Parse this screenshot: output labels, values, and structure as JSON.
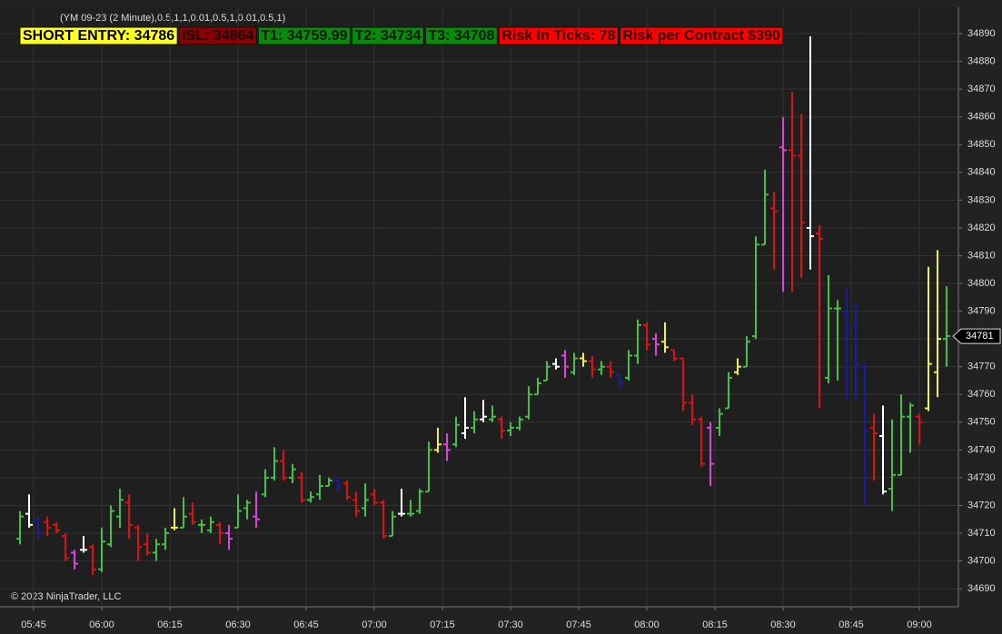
{
  "chart_data": {
    "type": "ohlc",
    "title": "(YM 09-23 (2 Minute),0.5,1,1,0.01,0.5,1,0.01,0.5,1)",
    "copyright": "© 2023 NinjaTrader, LLC",
    "annotations": [
      {
        "text": "SHORT ENTRY: 34786",
        "background": "#ffff22",
        "color": "#000000"
      },
      {
        "text": "ISL: 34864",
        "background": "#8b0000",
        "color": "#1a0000"
      },
      {
        "text": "T1: 34759.99",
        "background": "#0a8a0a",
        "color": "#001a00"
      },
      {
        "text": "T2: 34734",
        "background": "#0a8a0a",
        "color": "#001a00"
      },
      {
        "text": "T3: 34708",
        "background": "#0a8a0a",
        "color": "#001a00"
      },
      {
        "text": "Risk In Ticks: 78",
        "background": "#ff0000",
        "color": "#2a0000"
      },
      {
        "text": "Risk per Contract $390",
        "background": "#ff0000",
        "color": "#2a0000"
      }
    ],
    "x": [
      342,
      344,
      346,
      348,
      350,
      352,
      354,
      356,
      358,
      360,
      362,
      364,
      366,
      368,
      370,
      372,
      374,
      376,
      378,
      380,
      382,
      384,
      386,
      388,
      390,
      392,
      394,
      396,
      398,
      400,
      402,
      404,
      406,
      408,
      410,
      412,
      414,
      416,
      418,
      420,
      422,
      424,
      426,
      428,
      430,
      432,
      434,
      436,
      438,
      440,
      442,
      444,
      446,
      448,
      450,
      452,
      454,
      456,
      458,
      460,
      462,
      464,
      466,
      468,
      470,
      472,
      474,
      476,
      478,
      480,
      482,
      484,
      486,
      488,
      490,
      492,
      494,
      496,
      498,
      500,
      502,
      504,
      506,
      508,
      510,
      512,
      514,
      516,
      518,
      520,
      522,
      524,
      526,
      528,
      530,
      532,
      534,
      536,
      538,
      540,
      542,
      544,
      546
    ],
    "open": [
      34708,
      34717,
      34715,
      34714,
      34713,
      34709,
      34703,
      34704,
      34705,
      34697,
      34706,
      34716,
      34721,
      34712,
      34706,
      34703,
      34706,
      34712,
      34712,
      34717,
      34713,
      34711,
      34713,
      34710,
      34712,
      34719,
      34716,
      34724,
      34730,
      34736,
      34730,
      34730,
      34722,
      34724,
      34727,
      34729,
      34728,
      34722,
      34719,
      34724,
      34721,
      34709,
      34717,
      34717,
      34718,
      34725,
      34740,
      34742,
      34742,
      34746,
      34748,
      34751,
      34751,
      34751,
      34747,
      34748,
      34752,
      34760,
      34765,
      34771,
      34774,
      34768,
      34773,
      34772,
      34769,
      34770,
      34767,
      34766,
      34774,
      34785,
      34780,
      34779,
      34776,
      34773,
      34757,
      34751,
      34748,
      34748,
      34755,
      34768,
      34770,
      34781,
      34814,
      34827,
      34849,
      34848,
      34846,
      34820,
      34818,
      34766,
      34791,
      34789,
      34785,
      34770,
      34748,
      34745,
      34726,
      34731,
      34752,
      34752,
      34755,
      34768,
      34780
    ],
    "high": [
      34718,
      34724,
      34716,
      34716,
      34714,
      34710,
      34704,
      34709,
      34706,
      34712,
      34720,
      34726,
      34724,
      34713,
      34710,
      34708,
      34712,
      34719,
      34723,
      34721,
      34715,
      34716,
      34714,
      34713,
      34724,
      34722,
      34725,
      34733,
      34741,
      34740,
      34735,
      34732,
      34725,
      34731,
      34730,
      34730,
      34729,
      34725,
      34728,
      34726,
      34722,
      34718,
      34726,
      34722,
      34726,
      34743,
      34748,
      34746,
      34752,
      34759,
      34754,
      34758,
      34756,
      34752,
      34750,
      34752,
      34763,
      34766,
      34772,
      34773,
      34776,
      34775,
      34775,
      34774,
      34772,
      34772,
      34767,
      34776,
      34787,
      34786,
      34782,
      34786,
      34776,
      34773,
      34760,
      34752,
      34750,
      34755,
      34768,
      34773,
      34781,
      34817,
      34841,
      34833,
      34860,
      34869,
      34861,
      34889,
      34821,
      34803,
      34794,
      34798,
      34793,
      34771,
      34753,
      34756,
      34751,
      34760,
      34757,
      34753,
      34806,
      34812,
      34799
    ],
    "low": [
      34706,
      34712,
      34708,
      34709,
      34710,
      34700,
      34697,
      34703,
      34695,
      34696,
      34705,
      34712,
      34708,
      34700,
      34702,
      34700,
      34704,
      34711,
      34712,
      34713,
      34710,
      34710,
      34706,
      34704,
      34712,
      34715,
      34712,
      34723,
      34729,
      34729,
      34728,
      34721,
      34721,
      34722,
      34727,
      34725,
      34722,
      34716,
      34716,
      34720,
      34708,
      34709,
      34716,
      34716,
      34717,
      34725,
      34739,
      34736,
      34741,
      34744,
      34746,
      34750,
      34750,
      34744,
      34745,
      34747,
      34751,
      34760,
      34765,
      34769,
      34766,
      34767,
      34770,
      34766,
      34767,
      34766,
      34762,
      34765,
      34771,
      34776,
      34774,
      34775,
      34772,
      34754,
      34749,
      34734,
      34727,
      34745,
      34755,
      34767,
      34770,
      34780,
      34814,
      34805,
      34797,
      34797,
      34802,
      34805,
      34755,
      34764,
      34765,
      34758,
      34758,
      34720,
      34729,
      34724,
      34718,
      34731,
      34739,
      34742,
      34754,
      34759,
      34770
    ],
    "close": [
      34716,
      34713,
      34710,
      34712,
      34711,
      34701,
      34699,
      34704,
      34697,
      34707,
      34718,
      34722,
      34713,
      34705,
      34703,
      34706,
      34710,
      34712,
      34716,
      34714,
      34713,
      34714,
      34710,
      34708,
      34718,
      34721,
      34715,
      34730,
      34736,
      34730,
      34733,
      34722,
      34723,
      34727,
      34729,
      34727,
      34723,
      34718,
      34722,
      34721,
      34709,
      34716,
      34717,
      34717,
      34725,
      34740,
      34742,
      34740,
      34749,
      34748,
      34751,
      34752,
      34752,
      34747,
      34748,
      34751,
      34760,
      34764,
      34770,
      34770,
      34770,
      34773,
      34772,
      34769,
      34770,
      34768,
      34764,
      34774,
      34785,
      34778,
      34778,
      34777,
      34773,
      34757,
      34751,
      34735,
      34735,
      34753,
      34766,
      34770,
      34779,
      34814,
      34832,
      34826,
      34848,
      34846,
      34822,
      34817,
      34816,
      34791,
      34791,
      34783,
      34771,
      34747,
      34746,
      34725,
      34731,
      34752,
      34756,
      34750,
      34771,
      34780,
      34781
    ],
    "colors": [
      "#44c044",
      "#ffffff",
      "#1a1aa8",
      "#dd1111",
      "#dd1111",
      "#dd1111",
      "#e040e0",
      "#ffffff",
      "#dd1111",
      "#44c044",
      "#44c044",
      "#44c044",
      "#dd1111",
      "#dd1111",
      "#dd1111",
      "#44c044",
      "#44c044",
      "#f0f040",
      "#44c044",
      "#dd1111",
      "#44c044",
      "#44c044",
      "#dd1111",
      "#e040e0",
      "#44c044",
      "#44c044",
      "#e040e0",
      "#44c044",
      "#44c044",
      "#dd1111",
      "#44c044",
      "#dd1111",
      "#44c044",
      "#44c044",
      "#44c044",
      "#1a1aa8",
      "#dd1111",
      "#dd1111",
      "#44c044",
      "#dd1111",
      "#dd1111",
      "#44c044",
      "#ffffff",
      "#44c044",
      "#44c044",
      "#44c044",
      "#f0f040",
      "#e040e0",
      "#44c044",
      "#ffffff",
      "#44c044",
      "#ffffff",
      "#44c044",
      "#dd1111",
      "#44c044",
      "#44c044",
      "#44c044",
      "#44c044",
      "#44c044",
      "#ffffff",
      "#e040e0",
      "#44c044",
      "#f0f040",
      "#dd1111",
      "#44c044",
      "#dd1111",
      "#1a1aa8",
      "#44c044",
      "#44c044",
      "#dd1111",
      "#e040e0",
      "#f0f040",
      "#dd1111",
      "#dd1111",
      "#dd1111",
      "#dd1111",
      "#e040e0",
      "#44c044",
      "#44c044",
      "#f0f040",
      "#44c044",
      "#44c044",
      "#44c044",
      "#dd1111",
      "#e040e0",
      "#dd1111",
      "#dd1111",
      "#ffffff",
      "#dd1111",
      "#44c044",
      "#44c044",
      "#1a1aa8",
      "#1a1aa8",
      "#1a1aa8",
      "#dd1111",
      "#ffffff",
      "#44c044",
      "#44c044",
      "#44c044",
      "#dd1111",
      "#f0f040",
      "#f0f040",
      "#44c044"
    ],
    "xlim": [
      337.6,
      548.6
    ],
    "xticks": [
      {
        "value": 345,
        "label": "05:45"
      },
      {
        "value": 360,
        "label": "06:00"
      },
      {
        "value": 375,
        "label": "06:15"
      },
      {
        "value": 390,
        "label": "06:30"
      },
      {
        "value": 405,
        "label": "06:45"
      },
      {
        "value": 420,
        "label": "07:00"
      },
      {
        "value": 435,
        "label": "07:15"
      },
      {
        "value": 450,
        "label": "07:30"
      },
      {
        "value": 465,
        "label": "07:45"
      },
      {
        "value": 480,
        "label": "08:00"
      },
      {
        "value": 495,
        "label": "08:15"
      },
      {
        "value": 510,
        "label": "08:30"
      },
      {
        "value": 525,
        "label": "08:45"
      },
      {
        "value": 540,
        "label": "09:00"
      }
    ],
    "ylim": [
      34683.5,
      34899.5
    ],
    "yticks": [
      34690,
      34700,
      34710,
      34720,
      34730,
      34740,
      34750,
      34760,
      34770,
      34780,
      34790,
      34800,
      34810,
      34820,
      34830,
      34840,
      34850,
      34860,
      34870,
      34880,
      34890
    ],
    "grid": true,
    "price_marker": 34781
  }
}
